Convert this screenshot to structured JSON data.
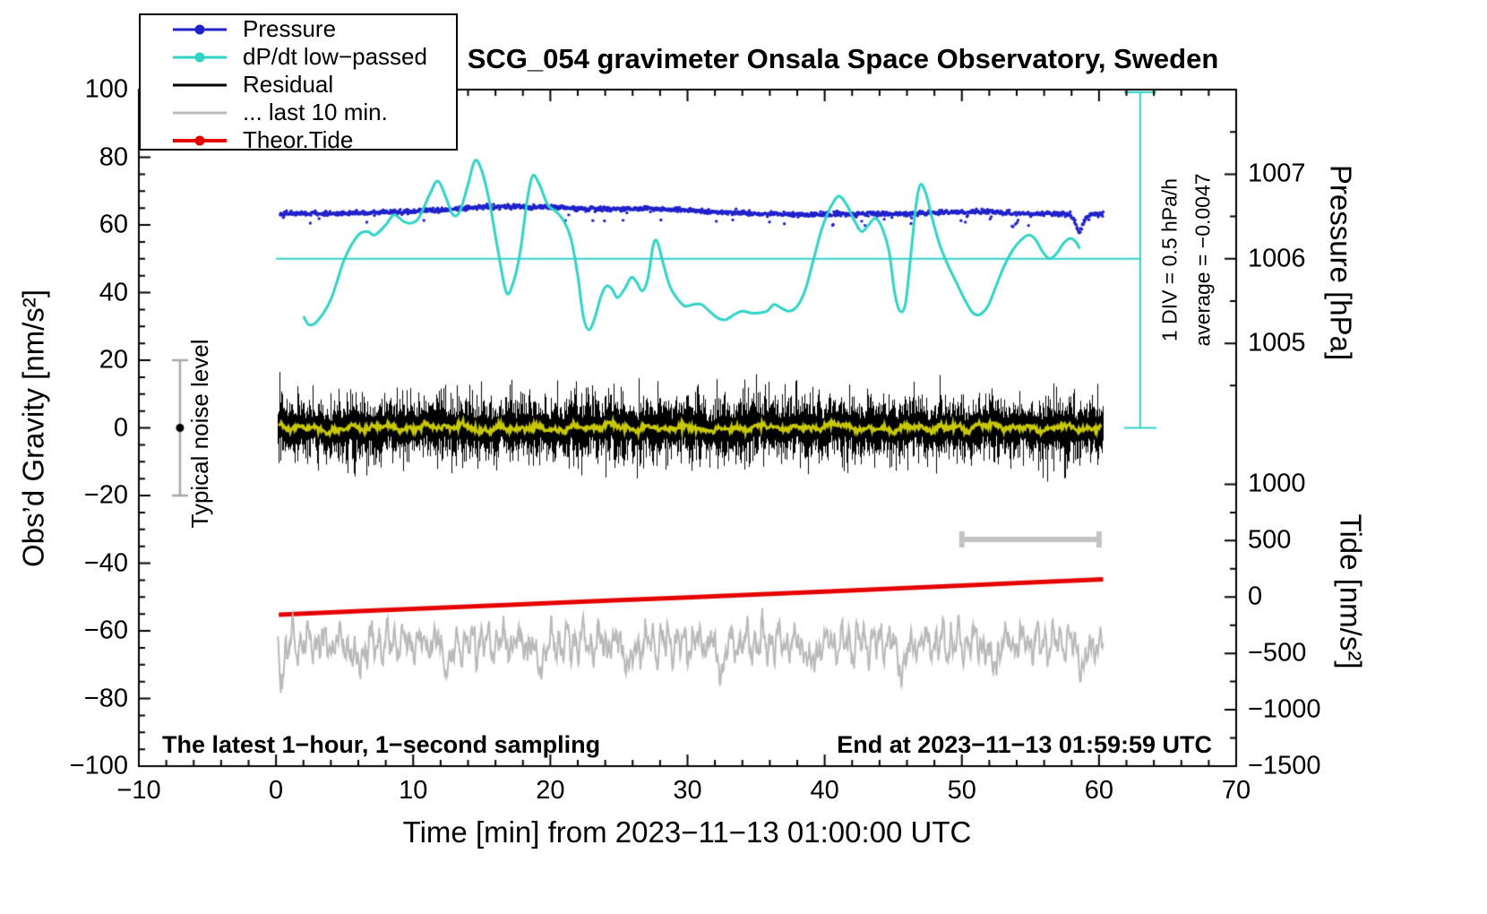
{
  "title": "SCG_054 gravimeter Onsala Space Observatory, Sweden",
  "footer_left": "The latest 1−hour, 1−second sampling",
  "footer_right": "End at 2023−11−13 01:59:59 UTC",
  "annotations": {
    "scale_div": "1 DIV = 0.5 hPa/h",
    "average": "average = −0.0047",
    "noise_level": "Typical noise level"
  },
  "legend": {
    "items": [
      {
        "label": "Pressure",
        "color": "#2121cc",
        "marker": "dot",
        "width": 3
      },
      {
        "label": "dP/dt low−passed",
        "color": "#2fd3c6",
        "marker": "dot",
        "width": 3
      },
      {
        "label": "Residual",
        "color": "#000000",
        "marker": "none",
        "width": 3
      },
      {
        "label": "... last 10 min.",
        "color": "#bbbbbb",
        "marker": "none",
        "width": 3
      },
      {
        "label": "Theor.Tide",
        "color": "#e60000",
        "marker": "dot",
        "width": 4
      }
    ]
  },
  "chart_data": {
    "type": "line",
    "title": "SCG_054 gravimeter Onsala Space Observatory, Sweden",
    "axes": {
      "x": {
        "label": "Time [min] from 2023−11−13 01:00:00 UTC",
        "range": [
          -10,
          70
        ],
        "major_ticks": [
          -10,
          0,
          10,
          20,
          30,
          40,
          50,
          60,
          70
        ],
        "tick_labels": [
          "−10",
          "0",
          "10",
          "20",
          "30",
          "40",
          "50",
          "60",
          "70"
        ],
        "minor_step": 2
      },
      "y_gravity": {
        "label": "Obs’d Gravity [nm/s²]",
        "range": [
          -100,
          100
        ],
        "major_ticks": [
          -100,
          -80,
          -60,
          -40,
          -20,
          0,
          20,
          40,
          60,
          80,
          100
        ],
        "tick_labels": [
          "−100",
          "−80",
          "−60",
          "−40",
          "−20",
          "0",
          "20",
          "40",
          "60",
          "80",
          "100"
        ],
        "minor_step": 5
      },
      "y_pressure": {
        "label": "Pressure [hPa]",
        "ticks": [
          1005,
          1006,
          1007
        ],
        "tick_labels": [
          "1005",
          "1006",
          "1007"
        ],
        "minor_ticks": [
          1004.5,
          1005.5,
          1006.5,
          1007.5
        ],
        "anchor_hPa": 1006,
        "anchor_g": 50,
        "gravity_per_hPa": 25
      },
      "y_tide": {
        "label": "Tide [nm/s²]",
        "ticks": [
          1000,
          500,
          0,
          -500,
          -1000,
          -1500
        ],
        "tick_labels": [
          "1000",
          "500",
          "0",
          "−500",
          "−1000",
          "−1500"
        ],
        "minor_ticks": [
          -1250,
          -750,
          -250,
          250,
          750
        ],
        "anchor_tide": 0,
        "anchor_g": -50,
        "gravity_per_unit": 0.033333
      }
    },
    "series": [
      {
        "name": "pressure",
        "label": "Pressure",
        "color": "#2121cc",
        "style": "dots",
        "units": "hPa (right upper axis), mean ≈ 1006.55",
        "x_range": [
          0.3,
          60.3
        ],
        "outlier_regions": [
          [
            2.5,
            4.5
          ],
          [
            20.5,
            24.5
          ],
          [
            39.5,
            47.5
          ],
          [
            49,
            56
          ]
        ],
        "points": [
          [
            0.3,
            63.3
          ],
          [
            2,
            63.5
          ],
          [
            4,
            63.3
          ],
          [
            6,
            63.5
          ],
          [
            8,
            63.8
          ],
          [
            10,
            64.0
          ],
          [
            12,
            64.4
          ],
          [
            14,
            65.0
          ],
          [
            15.5,
            65.4
          ],
          [
            17,
            65.4
          ],
          [
            19,
            65.2
          ],
          [
            21,
            65.0
          ],
          [
            23,
            64.7
          ],
          [
            25,
            64.6
          ],
          [
            27,
            64.8
          ],
          [
            29,
            64.5
          ],
          [
            31,
            64.0
          ],
          [
            33,
            63.6
          ],
          [
            35,
            63.3
          ],
          [
            37,
            63.2
          ],
          [
            39,
            63.0
          ],
          [
            41,
            63.2
          ],
          [
            43,
            63.3
          ],
          [
            45,
            63.2
          ],
          [
            47,
            63.4
          ],
          [
            49,
            63.8
          ],
          [
            51,
            63.9
          ],
          [
            53,
            63.6
          ],
          [
            55,
            63.3
          ],
          [
            56.5,
            63.4
          ],
          [
            57.5,
            63.2
          ],
          [
            57.9,
            62.8
          ],
          [
            58.2,
            61.3
          ],
          [
            58.45,
            58.6
          ],
          [
            58.6,
            57.3
          ],
          [
            58.75,
            59.5
          ],
          [
            59.0,
            62.0
          ],
          [
            59.3,
            63.0
          ],
          [
            60.3,
            63.4
          ]
        ]
      },
      {
        "name": "dpdt_lowpassed",
        "label": "dP/dt low−passed",
        "color": "#2fd3c6",
        "style": "line",
        "points": [
          [
            2,
            33
          ],
          [
            2.4,
            30.5
          ],
          [
            3,
            31.5
          ],
          [
            4,
            38
          ],
          [
            5,
            50
          ],
          [
            6,
            57
          ],
          [
            6.7,
            58
          ],
          [
            7.2,
            57
          ],
          [
            8,
            60
          ],
          [
            8.6,
            63
          ],
          [
            9.3,
            61
          ],
          [
            9.8,
            60.5
          ],
          [
            10.4,
            62
          ],
          [
            11.2,
            69
          ],
          [
            11.8,
            73
          ],
          [
            12.4,
            68
          ],
          [
            12.9,
            63
          ],
          [
            13.4,
            64
          ],
          [
            14,
            72
          ],
          [
            14.5,
            79
          ],
          [
            15,
            76
          ],
          [
            15.6,
            66
          ],
          [
            16.2,
            52
          ],
          [
            16.8,
            40
          ],
          [
            17.3,
            43
          ],
          [
            17.8,
            52
          ],
          [
            18.3,
            67
          ],
          [
            18.7,
            74.5
          ],
          [
            19.2,
            72
          ],
          [
            19.8,
            66
          ],
          [
            20.4,
            64
          ],
          [
            21,
            61
          ],
          [
            21.5,
            56
          ],
          [
            22,
            45
          ],
          [
            22.4,
            33
          ],
          [
            22.8,
            29
          ],
          [
            23.2,
            32
          ],
          [
            23.7,
            39
          ],
          [
            24.1,
            42
          ],
          [
            24.5,
            41
          ],
          [
            24.9,
            38.5
          ],
          [
            25.4,
            41
          ],
          [
            25.9,
            44.5
          ],
          [
            26.3,
            43
          ],
          [
            26.7,
            40.5
          ],
          [
            27.1,
            44
          ],
          [
            27.5,
            54
          ],
          [
            27.8,
            55
          ],
          [
            28.2,
            49
          ],
          [
            28.7,
            42
          ],
          [
            29.2,
            38.5
          ],
          [
            29.8,
            36
          ],
          [
            30.4,
            36.5
          ],
          [
            31,
            36.5
          ],
          [
            31.6,
            34.5
          ],
          [
            32.2,
            32.5
          ],
          [
            32.8,
            32
          ],
          [
            33.4,
            33.5
          ],
          [
            34,
            34.5
          ],
          [
            34.6,
            34
          ],
          [
            35.2,
            34
          ],
          [
            35.8,
            34.5
          ],
          [
            36.3,
            36.5
          ],
          [
            36.8,
            35.5
          ],
          [
            37.4,
            34.5
          ],
          [
            38,
            36
          ],
          [
            38.6,
            41
          ],
          [
            39.2,
            50
          ],
          [
            39.8,
            59
          ],
          [
            40.4,
            65
          ],
          [
            41,
            68.5
          ],
          [
            41.6,
            66
          ],
          [
            42.2,
            61
          ],
          [
            42.7,
            58
          ],
          [
            43.2,
            60
          ],
          [
            43.7,
            62
          ],
          [
            44.2,
            59
          ],
          [
            44.7,
            52
          ],
          [
            45.1,
            40
          ],
          [
            45.5,
            34.5
          ],
          [
            45.9,
            37
          ],
          [
            46.3,
            52
          ],
          [
            46.7,
            67
          ],
          [
            47,
            72
          ],
          [
            47.4,
            69
          ],
          [
            47.9,
            61
          ],
          [
            48.4,
            54
          ],
          [
            49,
            48
          ],
          [
            49.6,
            43
          ],
          [
            50.2,
            38
          ],
          [
            50.8,
            34
          ],
          [
            51.3,
            33.5
          ],
          [
            51.9,
            36
          ],
          [
            52.5,
            42
          ],
          [
            53.1,
            48
          ],
          [
            53.7,
            52.5
          ],
          [
            54.3,
            55.5
          ],
          [
            54.9,
            57
          ],
          [
            55.4,
            55.5
          ],
          [
            55.9,
            52
          ],
          [
            56.4,
            50
          ],
          [
            56.9,
            51.5
          ],
          [
            57.4,
            54.5
          ],
          [
            57.9,
            56
          ],
          [
            58.3,
            55
          ],
          [
            58.6,
            53
          ]
        ]
      },
      {
        "name": "residual",
        "label": "Residual",
        "color": "#000000",
        "style": "noise_band",
        "x_range": [
          0.15,
          60.3
        ],
        "center": 0,
        "typical_amplitude": 8,
        "spike_amplitude": 15
      },
      {
        "name": "residual_lowpassed",
        "label": "Residual low-passed (unlabeled yellow)",
        "color": "#c8c800",
        "style": "line",
        "x_range": [
          0.2,
          60.2
        ],
        "center": 0,
        "amplitude": 1.3
      },
      {
        "name": "last_10_min",
        "label": "... last 10 min.",
        "color": "#b9b9b9",
        "style": "line",
        "x_range": [
          0.1,
          60.3
        ],
        "center": -63.5,
        "amplitude": 7,
        "min": -75,
        "max": -53
      },
      {
        "name": "theor_tide",
        "label": "Theor.Tide",
        "color": "#e60000",
        "style": "line",
        "points": [
          [
            0.2,
            -55.2
          ],
          [
            10,
            -53.5
          ],
          [
            20,
            -51.8
          ],
          [
            30,
            -50.1
          ],
          [
            40,
            -48.4
          ],
          [
            50,
            -46.6
          ],
          [
            60.3,
            -44.8
          ]
        ],
        "tide_values_nm_s2": [
          -156,
          -105,
          -54,
          -3,
          48,
          102,
          156
        ]
      }
    ],
    "extras": {
      "noise_errorbar": {
        "x": -7,
        "g_min": -20,
        "g_max": 20,
        "dot_g": 0,
        "color": "#a8a8a8"
      },
      "gray_bar": {
        "g": -33,
        "x_from": 50,
        "x_to": 60,
        "color": "#c3c3c3"
      },
      "cyan_scale_bar": {
        "x": 63,
        "g_from": 0,
        "g_to": 100,
        "hline_g": 50,
        "color": "#2fd3c6"
      }
    }
  }
}
